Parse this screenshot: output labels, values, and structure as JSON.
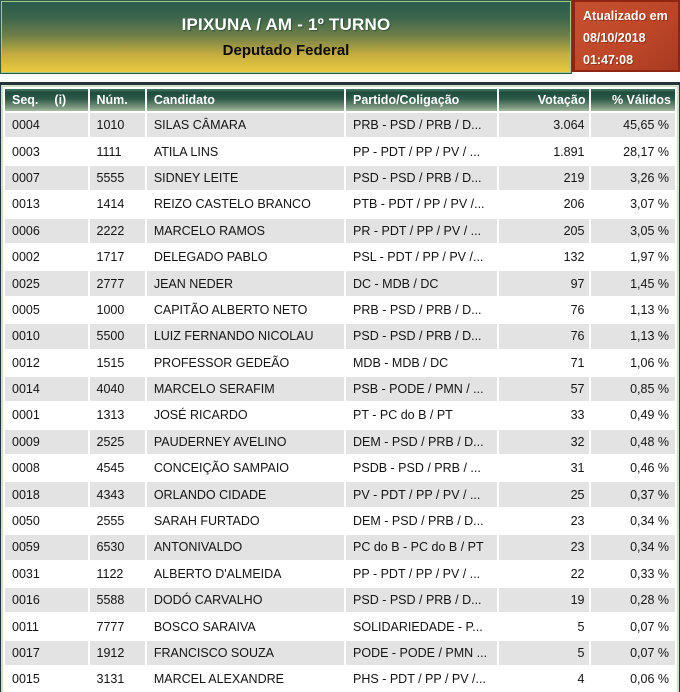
{
  "banner": {
    "title": "IPIXUNA / AM - 1º TURNO",
    "subtitle": "Deputado Federal"
  },
  "updated": {
    "label": "Atualizado em",
    "date": "08/10/2018",
    "time": "01:47:08"
  },
  "table": {
    "headers": {
      "seq": "Seq.",
      "seq_info": "(i)",
      "num": "Núm.",
      "candidate": "Candidato",
      "party": "Partido/Coligação",
      "votes": "Votação",
      "pct": "% Válidos"
    },
    "rows": [
      {
        "seq": "0004",
        "num": "1010",
        "candidate": "SILAS CÂMARA",
        "party": "PRB - PSD / PRB / D...",
        "votes": "3.064",
        "pct": "45,65 %"
      },
      {
        "seq": "0003",
        "num": "1111",
        "candidate": "ATILA LINS",
        "party": "PP - PDT / PP / PV / ...",
        "votes": "1.891",
        "pct": "28,17 %"
      },
      {
        "seq": "0007",
        "num": "5555",
        "candidate": "SIDNEY LEITE",
        "party": "PSD - PSD / PRB / D...",
        "votes": "219",
        "pct": "3,26 %"
      },
      {
        "seq": "0013",
        "num": "1414",
        "candidate": "REIZO CASTELO BRANCO",
        "party": "PTB - PDT / PP / PV /...",
        "votes": "206",
        "pct": "3,07 %"
      },
      {
        "seq": "0006",
        "num": "2222",
        "candidate": "MARCELO RAMOS",
        "party": "PR - PDT / PP / PV / ...",
        "votes": "205",
        "pct": "3,05 %"
      },
      {
        "seq": "0002",
        "num": "1717",
        "candidate": "DELEGADO PABLO",
        "party": "PSL - PDT / PP / PV /...",
        "votes": "132",
        "pct": "1,97 %"
      },
      {
        "seq": "0025",
        "num": "2777",
        "candidate": "JEAN NEDER",
        "party": "DC - MDB / DC",
        "votes": "97",
        "pct": "1,45 %"
      },
      {
        "seq": "0005",
        "num": "1000",
        "candidate": "CAPITÃO ALBERTO NETO",
        "party": "PRB - PSD / PRB / D...",
        "votes": "76",
        "pct": "1,13 %"
      },
      {
        "seq": "0010",
        "num": "5500",
        "candidate": "LUIZ FERNANDO NICOLAU",
        "party": "PSD - PSD / PRB / D...",
        "votes": "76",
        "pct": "1,13 %"
      },
      {
        "seq": "0012",
        "num": "1515",
        "candidate": "PROFESSOR GEDEÃO",
        "party": "MDB - MDB / DC",
        "votes": "71",
        "pct": "1,06 %"
      },
      {
        "seq": "0014",
        "num": "4040",
        "candidate": "MARCELO SERAFIM",
        "party": "PSB - PODE / PMN / ...",
        "votes": "57",
        "pct": "0,85 %"
      },
      {
        "seq": "0001",
        "num": "1313",
        "candidate": "JOSÉ RICARDO",
        "party": "PT - PC do B / PT",
        "votes": "33",
        "pct": "0,49 %"
      },
      {
        "seq": "0009",
        "num": "2525",
        "candidate": "PAUDERNEY AVELINO",
        "party": "DEM - PSD / PRB / D...",
        "votes": "32",
        "pct": "0,48 %"
      },
      {
        "seq": "0008",
        "num": "4545",
        "candidate": "CONCEIÇÃO SAMPAIO",
        "party": "PSDB - PSD / PRB / ...",
        "votes": "31",
        "pct": "0,46 %"
      },
      {
        "seq": "0018",
        "num": "4343",
        "candidate": "ORLANDO CIDADE",
        "party": "PV - PDT / PP / PV / ...",
        "votes": "25",
        "pct": "0,37 %"
      },
      {
        "seq": "0050",
        "num": "2555",
        "candidate": "SARAH FURTADO",
        "party": "DEM - PSD / PRB / D...",
        "votes": "23",
        "pct": "0,34 %"
      },
      {
        "seq": "0059",
        "num": "6530",
        "candidate": "ANTONIVALDO",
        "party": "PC do B - PC do B / PT",
        "votes": "23",
        "pct": "0,34 %"
      },
      {
        "seq": "0031",
        "num": "1122",
        "candidate": "ALBERTO D'ALMEIDA",
        "party": "PP - PDT / PP / PV / ...",
        "votes": "22",
        "pct": "0,33 %"
      },
      {
        "seq": "0016",
        "num": "5588",
        "candidate": "DODÓ CARVALHO",
        "party": "PSD - PSD / PRB / D...",
        "votes": "19",
        "pct": "0,28 %"
      },
      {
        "seq": "0011",
        "num": "7777",
        "candidate": "BOSCO SARAIVA",
        "party": "SOLIDARIEDADE - P...",
        "votes": "5",
        "pct": "0,07 %"
      },
      {
        "seq": "0017",
        "num": "1912",
        "candidate": "FRANCISCO SOUZA",
        "party": "PODE - PODE / PMN ...",
        "votes": "5",
        "pct": "0,07 %"
      },
      {
        "seq": "0015",
        "num": "3131",
        "candidate": "MARCEL ALEXANDRE",
        "party": "PHS - PDT / PP / PV /...",
        "votes": "4",
        "pct": "0,06 %"
      }
    ]
  },
  "colors": {
    "banner_green_dark": "#2b5b4d",
    "banner_yellow": "#e9c93d",
    "header_green_dark": "#1d4c3e",
    "updated_bg": "#bd4628",
    "updated_border": "#8e2412",
    "row_alt": "#e3e3e3"
  }
}
